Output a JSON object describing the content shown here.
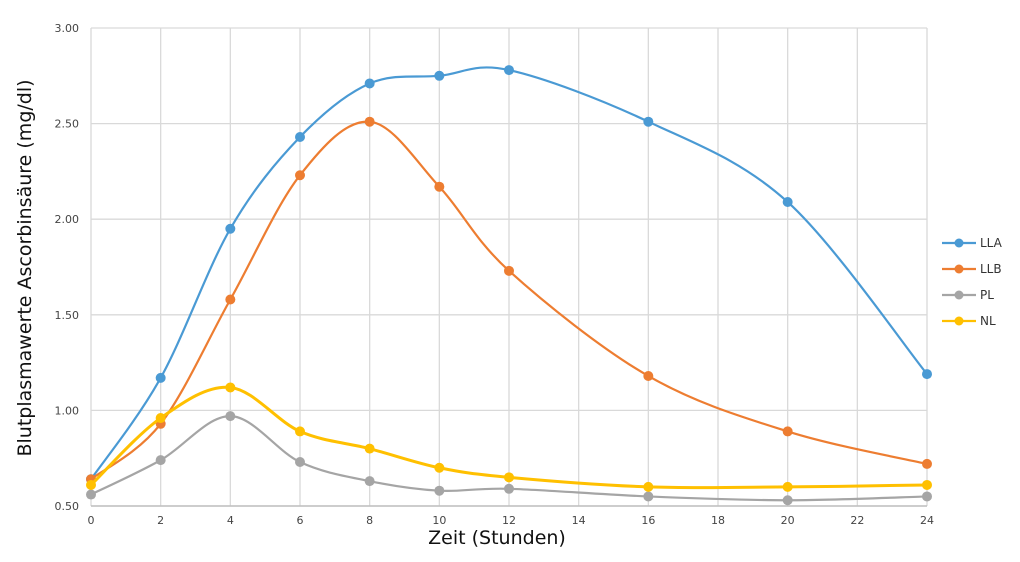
{
  "chart_data": {
    "type": "line",
    "title": "",
    "xlabel": "Zeit (Stunden)",
    "ylabel": "Blutplasmawerte Ascorbinsäure (mg/dl)",
    "xlim": [
      0,
      24
    ],
    "ylim": [
      0.5,
      3.0
    ],
    "x_ticks": [
      "0",
      "2",
      "4",
      "6",
      "8",
      "10",
      "12",
      "14",
      "16",
      "18",
      "20",
      "22",
      "24"
    ],
    "y_ticks": [
      "0.50",
      "1.00",
      "1.50",
      "2.00",
      "2.50",
      "3.00"
    ],
    "grid": true,
    "legend_position": "right",
    "smooth": true,
    "x": [
      0,
      2,
      4,
      6,
      8,
      10,
      12,
      16,
      20,
      24
    ],
    "series": [
      {
        "name": "LLA",
        "color": "#4a9ad4",
        "values": [
          0.64,
          1.17,
          1.95,
          2.43,
          2.71,
          2.75,
          2.78,
          2.51,
          2.09,
          1.19
        ]
      },
      {
        "name": "LLB",
        "color": "#ed7d31",
        "values": [
          0.64,
          0.93,
          1.58,
          2.23,
          2.51,
          2.17,
          1.73,
          1.18,
          0.89,
          0.72
        ]
      },
      {
        "name": "PL",
        "color": "#a5a5a5",
        "values": [
          0.56,
          0.74,
          0.97,
          0.73,
          0.63,
          0.58,
          0.59,
          0.55,
          0.53,
          0.55
        ]
      },
      {
        "name": "NL",
        "color": "#ffc000",
        "values": [
          0.61,
          0.96,
          1.12,
          0.89,
          0.8,
          0.7,
          0.65,
          0.6,
          0.6,
          0.61
        ]
      }
    ]
  }
}
